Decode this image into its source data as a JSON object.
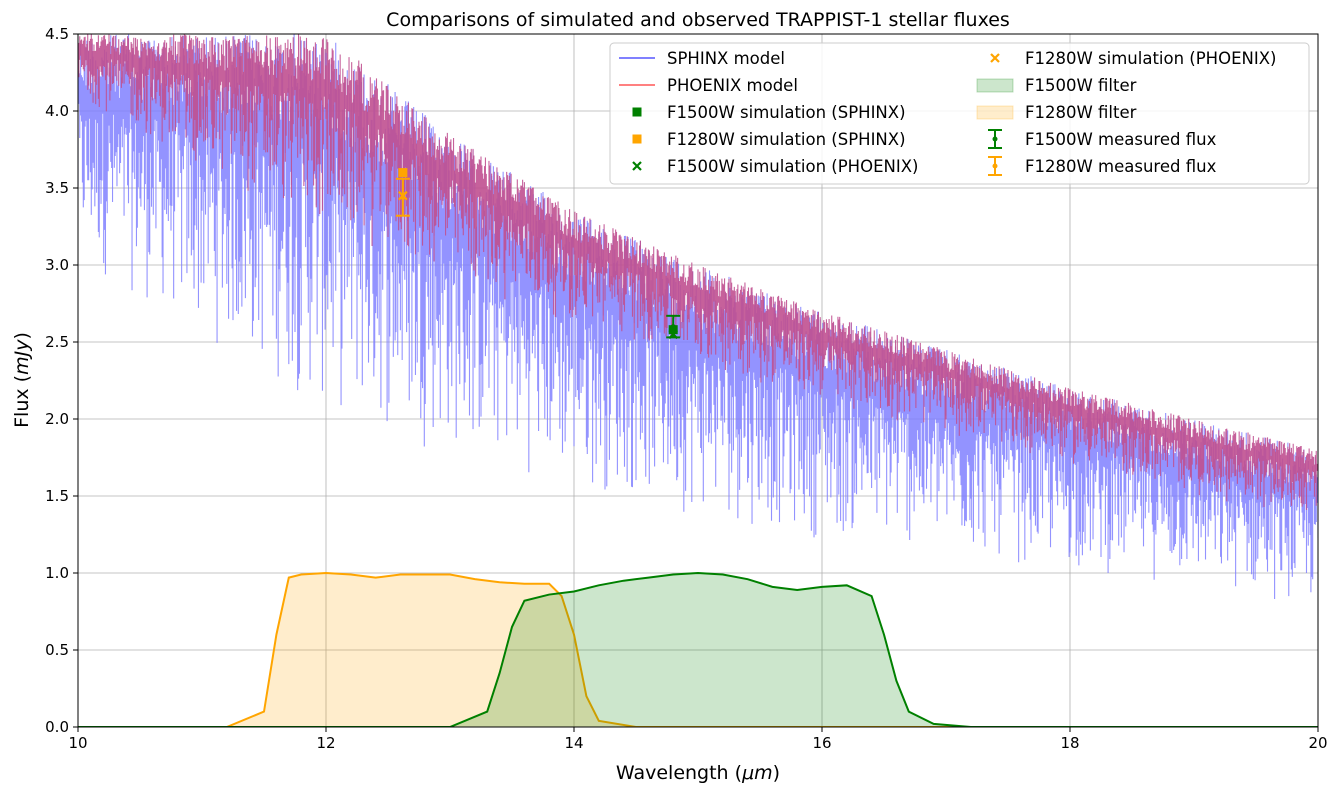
{
  "chart_data": {
    "type": "line",
    "title": "Comparisons of simulated and observed TRAPPIST-1 stellar fluxes",
    "xlabel": "Wavelength ",
    "xlabel_unit": "μm",
    "ylabel": "Flux ",
    "ylabel_unit": "mJy",
    "xlim": [
      10,
      20
    ],
    "ylim": [
      0,
      4.5
    ],
    "xticks": [
      "10",
      "12",
      "14",
      "16",
      "18",
      "20"
    ],
    "yticks": [
      "0.0",
      "0.5",
      "1.0",
      "1.5",
      "2.0",
      "2.5",
      "3.0",
      "3.5",
      "4.0",
      "4.5"
    ],
    "grid": true,
    "legend_position": "top-right",
    "colors": {
      "sphinx": "#8080ff",
      "phoenix": "#ff8080",
      "overlap": "#c05090",
      "f1500w": "#008000",
      "f1280w": "#ffa500"
    },
    "series": [
      {
        "name": "SPHINX model",
        "kind": "line",
        "color": "#8080ff",
        "upper_envelope": {
          "x": [
            10,
            11,
            12,
            13,
            14,
            15,
            16,
            17,
            18,
            19,
            20
          ],
          "y": [
            4.5,
            4.5,
            4.5,
            3.85,
            3.35,
            3.0,
            2.7,
            2.45,
            2.2,
            2.0,
            1.8
          ]
        },
        "lower_envelope": {
          "x": [
            10,
            11,
            12,
            13,
            14,
            15,
            16,
            17,
            18,
            19,
            20
          ],
          "y": [
            3.0,
            2.5,
            2.0,
            1.75,
            1.55,
            1.35,
            1.2,
            1.1,
            1.0,
            0.9,
            0.75
          ]
        }
      },
      {
        "name": "PHOENIX model",
        "kind": "line",
        "color": "#ff8080",
        "upper_envelope": {
          "x": [
            10,
            11,
            12,
            13,
            14,
            15,
            16,
            17,
            18,
            19,
            20
          ],
          "y": [
            4.5,
            4.5,
            4.5,
            3.85,
            3.35,
            3.0,
            2.7,
            2.45,
            2.2,
            2.0,
            1.8
          ]
        },
        "lower_envelope": {
          "x": [
            10,
            11,
            12,
            13,
            14,
            15,
            16,
            17,
            18,
            19,
            20
          ],
          "y": [
            4.1,
            3.6,
            3.2,
            2.9,
            2.6,
            2.35,
            2.1,
            1.9,
            1.7,
            1.5,
            1.35
          ]
        }
      },
      {
        "name": "F1500W simulation (SPHINX)",
        "kind": "marker",
        "marker": "square",
        "color": "#008000",
        "x": 14.8,
        "y": 2.58
      },
      {
        "name": "F1280W simulation (SPHINX)",
        "kind": "marker",
        "marker": "square",
        "color": "#ffa500",
        "x": 12.62,
        "y": 3.6
      },
      {
        "name": "F1500W simulation (PHOENIX)",
        "kind": "marker",
        "marker": "x",
        "color": "#008000",
        "x": 14.8,
        "y": 2.55
      },
      {
        "name": "F1280W simulation (PHOENIX)",
        "kind": "marker",
        "marker": "x",
        "color": "#ffa500",
        "x": 12.62,
        "y": 3.45
      },
      {
        "name": "F1500W filter",
        "kind": "filter",
        "color": "#008000",
        "x": [
          13.0,
          13.3,
          13.4,
          13.5,
          13.6,
          13.8,
          14.0,
          14.2,
          14.4,
          14.6,
          14.8,
          15.0,
          15.2,
          15.4,
          15.6,
          15.8,
          16.0,
          16.2,
          16.4,
          16.5,
          16.6,
          16.7,
          16.9,
          17.2
        ],
        "y": [
          0.0,
          0.1,
          0.35,
          0.65,
          0.82,
          0.86,
          0.88,
          0.92,
          0.95,
          0.97,
          0.99,
          1.0,
          0.99,
          0.96,
          0.91,
          0.89,
          0.91,
          0.92,
          0.85,
          0.6,
          0.3,
          0.1,
          0.02,
          0.0
        ]
      },
      {
        "name": "F1280W filter",
        "kind": "filter",
        "color": "#ffa500",
        "x": [
          11.2,
          11.5,
          11.6,
          11.7,
          11.8,
          12.0,
          12.2,
          12.4,
          12.6,
          12.8,
          13.0,
          13.2,
          13.4,
          13.6,
          13.8,
          13.9,
          14.0,
          14.1,
          14.2,
          14.5
        ],
        "y": [
          0.0,
          0.1,
          0.6,
          0.97,
          0.99,
          1.0,
          0.99,
          0.97,
          0.99,
          0.99,
          0.99,
          0.96,
          0.94,
          0.93,
          0.93,
          0.85,
          0.6,
          0.2,
          0.04,
          0.0
        ]
      },
      {
        "name": "F1500W measured flux",
        "kind": "errorbar",
        "color": "#008000",
        "x": 14.8,
        "y": 2.6,
        "yerr": 0.07
      },
      {
        "name": "F1280W measured flux",
        "kind": "errorbar",
        "color": "#ffa500",
        "x": 12.62,
        "y": 3.44,
        "yerr": 0.12
      }
    ],
    "legend": {
      "columns": [
        [
          "SPHINX model",
          "PHOENIX model",
          "F1500W simulation (SPHINX)",
          "F1280W simulation (SPHINX)",
          "F1500W simulation (PHOENIX)"
        ],
        [
          "F1280W simulation (PHOENIX)",
          "F1500W filter",
          "F1280W filter",
          "F1500W measured flux",
          "F1280W measured flux"
        ]
      ]
    }
  }
}
